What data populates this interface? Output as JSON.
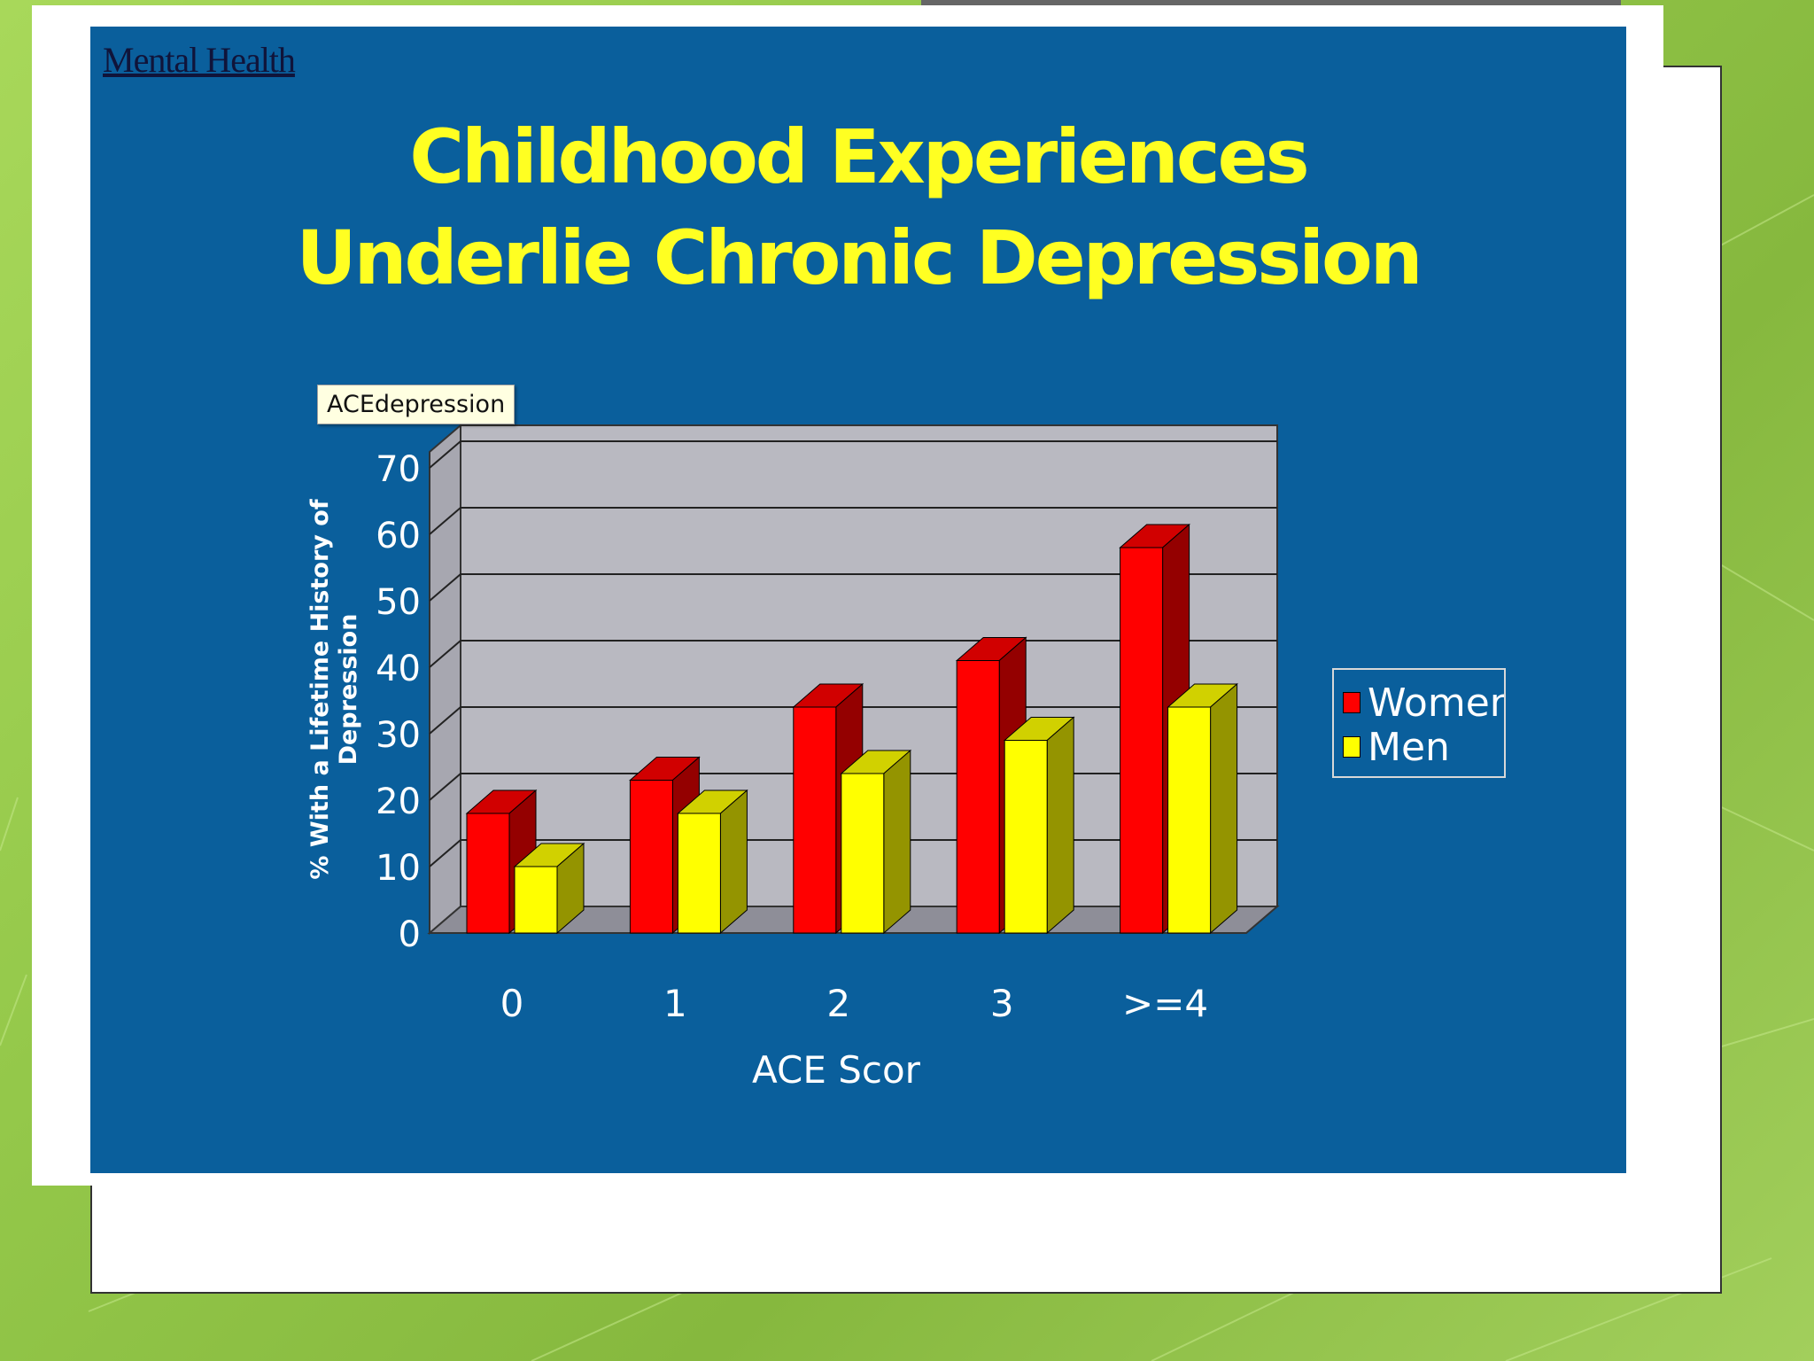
{
  "slide": {
    "link_text": "Mental Health",
    "title_line1": "Childhood Experiences",
    "title_line2": "Underlie Chronic Depression",
    "tooltip": "ACEdepression"
  },
  "colors": {
    "background_green": "#9cce50",
    "slide_blue": "#0a5f9c",
    "title_yellow": "#ffff22",
    "plot_gray": "#b8b8c0",
    "women_red": "#ff0000",
    "men_yellow": "#ffff00"
  },
  "chart_data": {
    "type": "bar",
    "style": "3d-clustered",
    "categories": [
      "0",
      "1",
      "2",
      "3",
      ">=4"
    ],
    "series": [
      {
        "name": "Women",
        "values": [
          18,
          23,
          34,
          41,
          58
        ],
        "color": "#ff0000"
      },
      {
        "name": "Men",
        "values": [
          10,
          18,
          24,
          29,
          34
        ],
        "color": "#ffff00"
      }
    ],
    "xlabel": "ACE Scor",
    "ylabel_line1": "% With a Lifetime History of",
    "ylabel_line2": "Depression",
    "y_ticks": [
      "0",
      "10",
      "20",
      "30",
      "40",
      "50",
      "60",
      "70"
    ],
    "ylim": [
      0,
      70
    ],
    "grid": true,
    "legend_position": "right"
  }
}
